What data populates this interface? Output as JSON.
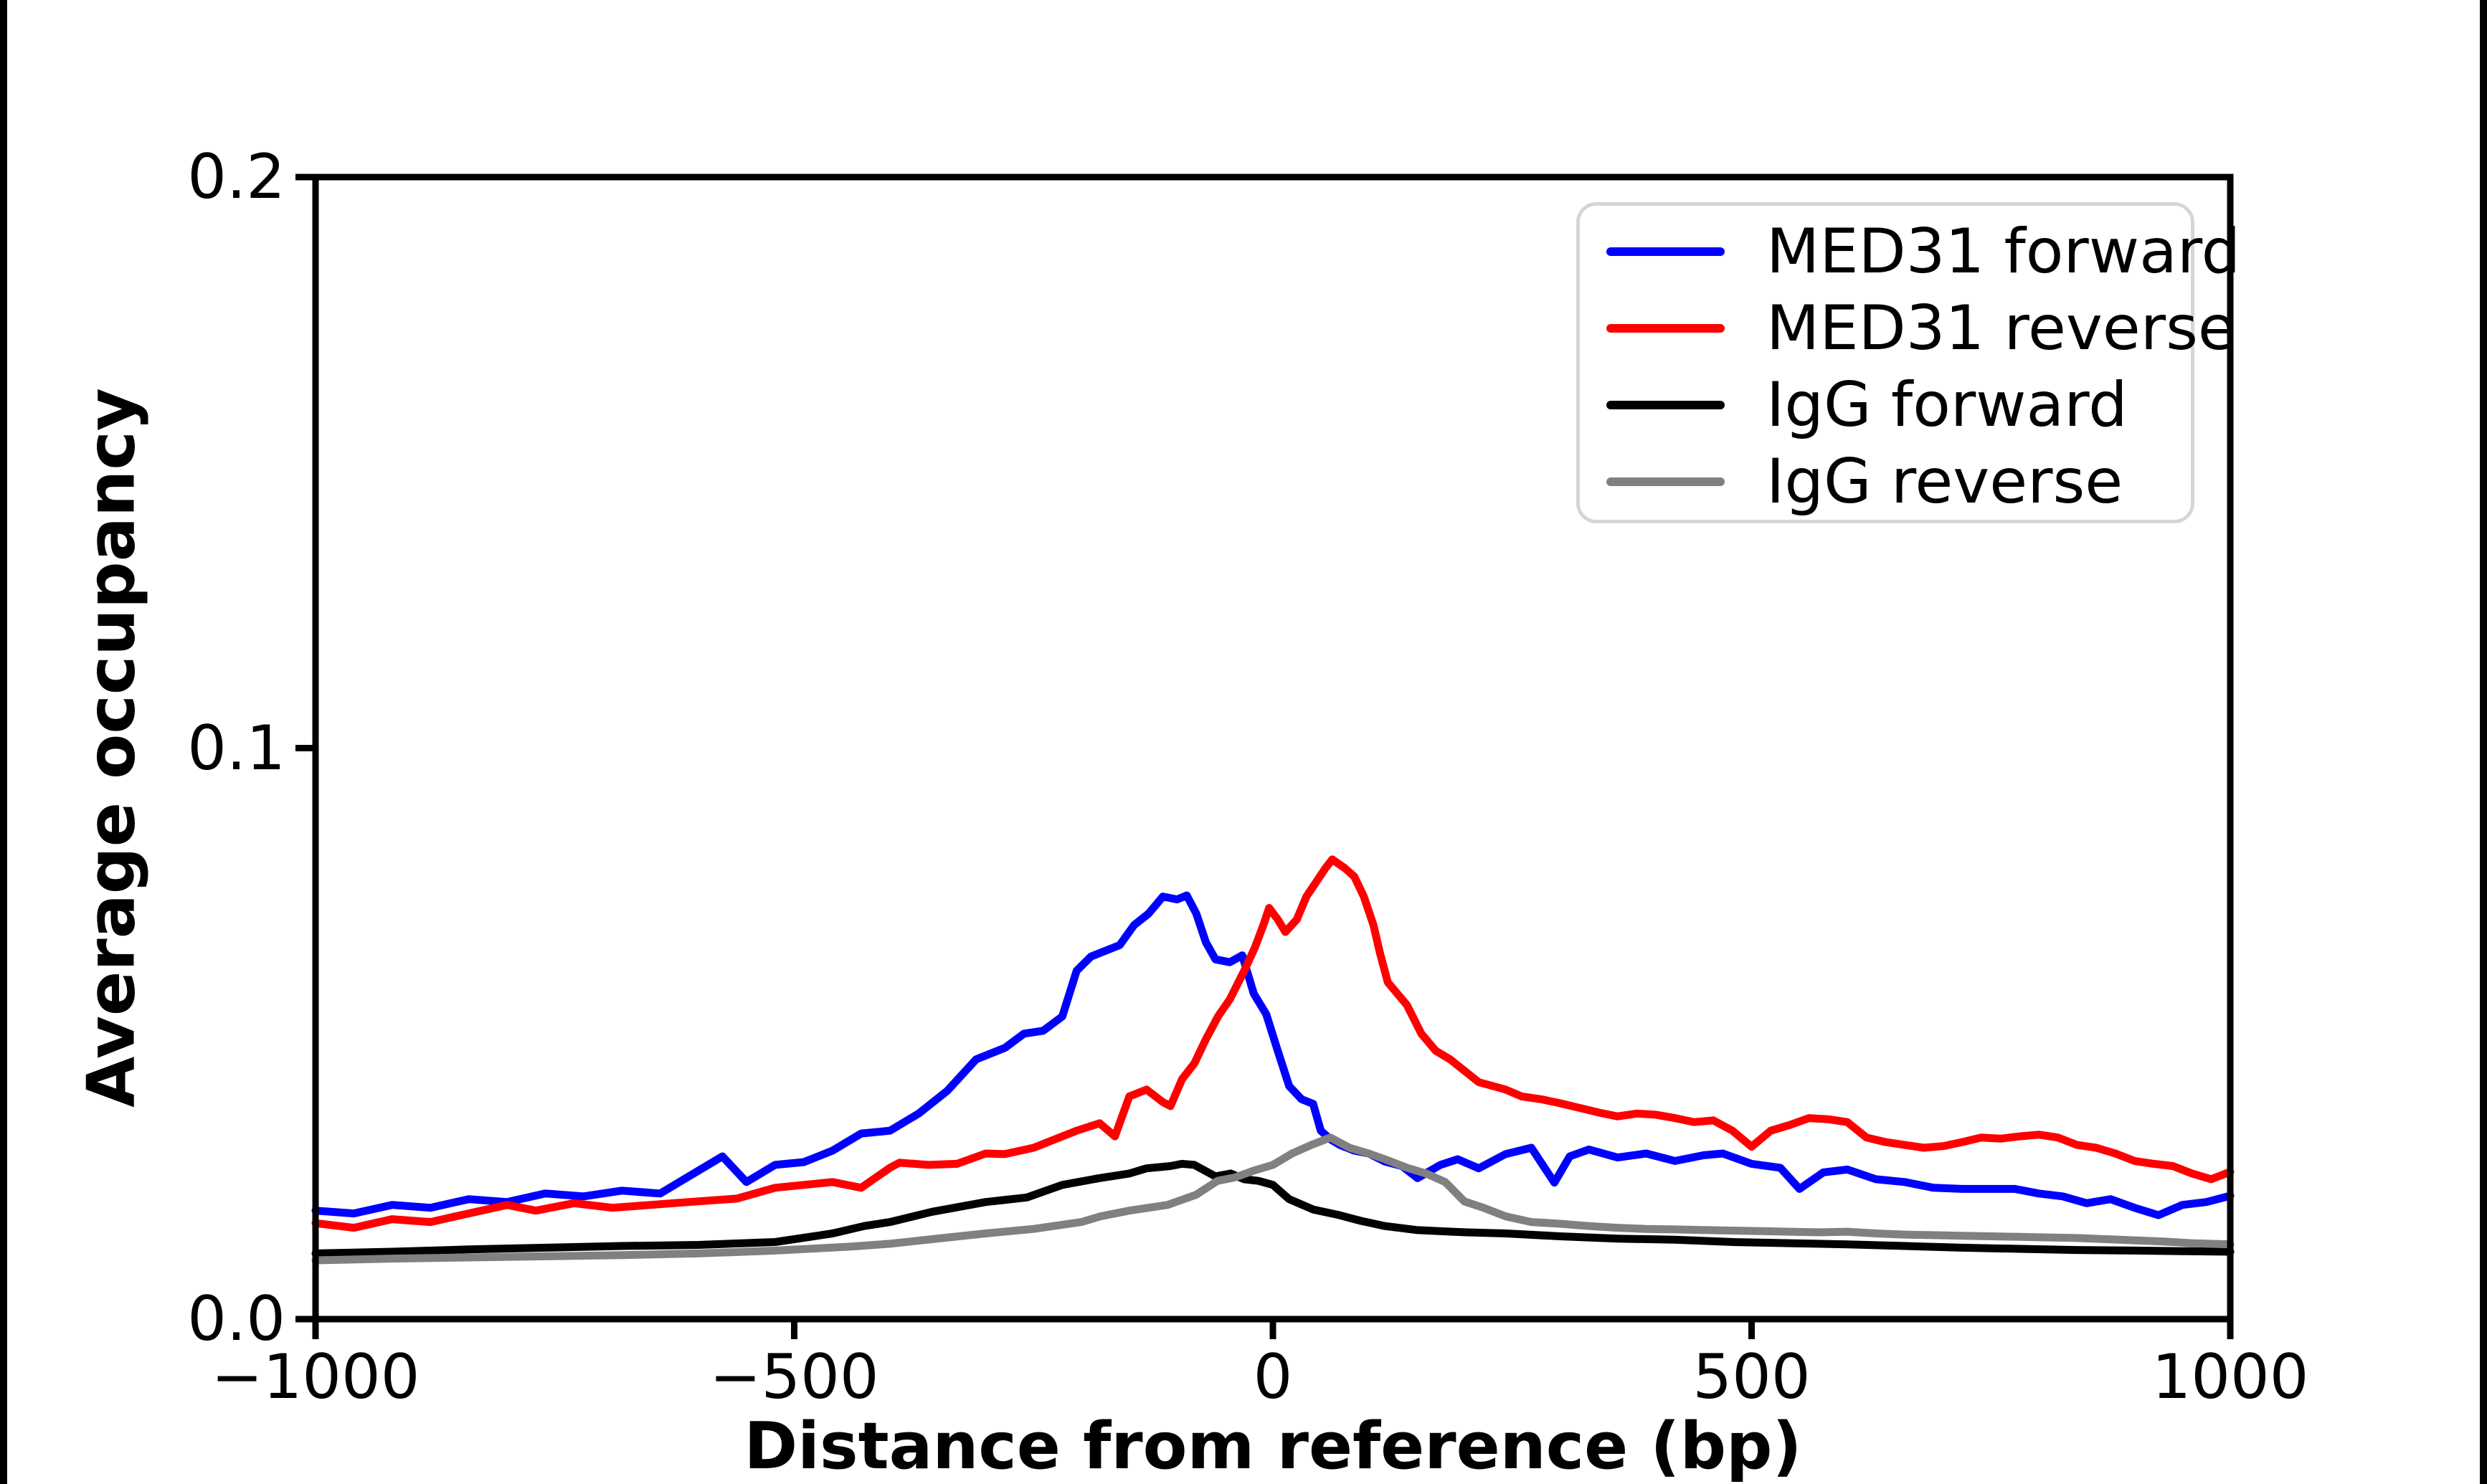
{
  "figure": {
    "background_color": "#ffffff",
    "edge_bar_color": "#000000",
    "spine_color": "#000000",
    "legend_border_color": "#d5d5d5"
  },
  "chart_data": {
    "type": "line",
    "title": "",
    "xlabel": "Distance from reference (bp)",
    "ylabel": "Average occupancy",
    "xlim": [
      -1000,
      1000
    ],
    "ylim": [
      0,
      0.2
    ],
    "grid": false,
    "legend_position": "upper right",
    "x_ticks": {
      "values": [
        -1000,
        -500,
        0,
        500,
        1000
      ],
      "labels": [
        "−1000",
        "−500",
        "0",
        "500",
        "1000"
      ]
    },
    "y_ticks": {
      "values": [
        0.0,
        0.1,
        0.2
      ],
      "labels": [
        "0.0",
        "0.1",
        "0.2"
      ]
    },
    "series": [
      {
        "name": "MED31 forward",
        "color": "#0000ff",
        "points": [
          [
            -1000,
            0.019
          ],
          [
            -960,
            0.0185
          ],
          [
            -920,
            0.02
          ],
          [
            -880,
            0.0195
          ],
          [
            -840,
            0.021
          ],
          [
            -800,
            0.0205
          ],
          [
            -760,
            0.022
          ],
          [
            -720,
            0.0215
          ],
          [
            -680,
            0.0225
          ],
          [
            -640,
            0.022
          ],
          [
            -600,
            0.026
          ],
          [
            -575,
            0.0285
          ],
          [
            -550,
            0.024
          ],
          [
            -520,
            0.027
          ],
          [
            -490,
            0.0275
          ],
          [
            -460,
            0.0295
          ],
          [
            -430,
            0.0325
          ],
          [
            -400,
            0.033
          ],
          [
            -370,
            0.036
          ],
          [
            -340,
            0.04
          ],
          [
            -310,
            0.0455
          ],
          [
            -280,
            0.0475
          ],
          [
            -260,
            0.05
          ],
          [
            -240,
            0.0505
          ],
          [
            -220,
            0.053
          ],
          [
            -205,
            0.061
          ],
          [
            -190,
            0.0635
          ],
          [
            -175,
            0.0645
          ],
          [
            -160,
            0.0655
          ],
          [
            -145,
            0.069
          ],
          [
            -130,
            0.071
          ],
          [
            -115,
            0.074
          ],
          [
            -100,
            0.0735
          ],
          [
            -90,
            0.0742
          ],
          [
            -80,
            0.071
          ],
          [
            -70,
            0.066
          ],
          [
            -60,
            0.063
          ],
          [
            -45,
            0.0625
          ],
          [
            -32,
            0.0637
          ],
          [
            -20,
            0.057
          ],
          [
            -7,
            0.0534
          ],
          [
            5,
            0.047
          ],
          [
            17,
            0.0408
          ],
          [
            30,
            0.0385
          ],
          [
            42,
            0.0377
          ],
          [
            50,
            0.033
          ],
          [
            60,
            0.0315
          ],
          [
            70,
            0.0305
          ],
          [
            85,
            0.0295
          ],
          [
            100,
            0.029
          ],
          [
            117,
            0.0276
          ],
          [
            135,
            0.0268
          ],
          [
            151,
            0.0247
          ],
          [
            175,
            0.027
          ],
          [
            193,
            0.028
          ],
          [
            215,
            0.0264
          ],
          [
            243,
            0.0289
          ],
          [
            270,
            0.03
          ],
          [
            294,
            0.0239
          ],
          [
            310,
            0.0285
          ],
          [
            330,
            0.0297
          ],
          [
            360,
            0.0283
          ],
          [
            390,
            0.029
          ],
          [
            420,
            0.0277
          ],
          [
            450,
            0.0287
          ],
          [
            470,
            0.029
          ],
          [
            500,
            0.0272
          ],
          [
            530,
            0.0265
          ],
          [
            550,
            0.0228
          ],
          [
            575,
            0.0257
          ],
          [
            600,
            0.0262
          ],
          [
            630,
            0.0245
          ],
          [
            660,
            0.024
          ],
          [
            690,
            0.023
          ],
          [
            720,
            0.0228
          ],
          [
            750,
            0.0228
          ],
          [
            775,
            0.0228
          ],
          [
            800,
            0.022
          ],
          [
            825,
            0.0215
          ],
          [
            850,
            0.0203
          ],
          [
            875,
            0.021
          ],
          [
            900,
            0.0195
          ],
          [
            925,
            0.0182
          ],
          [
            950,
            0.02
          ],
          [
            975,
            0.0205
          ],
          [
            1000,
            0.0216
          ]
        ]
      },
      {
        "name": "MED31 reverse",
        "color": "#ff0000",
        "points": [
          [
            -1000,
            0.0168
          ],
          [
            -960,
            0.016
          ],
          [
            -920,
            0.0175
          ],
          [
            -880,
            0.017
          ],
          [
            -840,
            0.0185
          ],
          [
            -800,
            0.02
          ],
          [
            -770,
            0.019
          ],
          [
            -730,
            0.0203
          ],
          [
            -690,
            0.0195
          ],
          [
            -650,
            0.02
          ],
          [
            -610,
            0.0205
          ],
          [
            -560,
            0.0211
          ],
          [
            -520,
            0.023
          ],
          [
            -490,
            0.0235
          ],
          [
            -460,
            0.024
          ],
          [
            -430,
            0.023
          ],
          [
            -400,
            0.0265
          ],
          [
            -390,
            0.0274
          ],
          [
            -360,
            0.027
          ],
          [
            -330,
            0.0272
          ],
          [
            -300,
            0.029
          ],
          [
            -280,
            0.0289
          ],
          [
            -250,
            0.03
          ],
          [
            -220,
            0.032
          ],
          [
            -205,
            0.033
          ],
          [
            -181,
            0.0343
          ],
          [
            -165,
            0.032
          ],
          [
            -150,
            0.039
          ],
          [
            -132,
            0.0402
          ],
          [
            -115,
            0.038
          ],
          [
            -107,
            0.0373
          ],
          [
            -95,
            0.042
          ],
          [
            -82,
            0.0448
          ],
          [
            -70,
            0.049
          ],
          [
            -57,
            0.0531
          ],
          [
            -45,
            0.056
          ],
          [
            -30,
            0.061
          ],
          [
            -19,
            0.065
          ],
          [
            -10,
            0.069
          ],
          [
            -4,
            0.072
          ],
          [
            5,
            0.07
          ],
          [
            13,
            0.0678
          ],
          [
            25,
            0.07
          ],
          [
            35,
            0.074
          ],
          [
            45,
            0.0765
          ],
          [
            55,
            0.079
          ],
          [
            62,
            0.0805
          ],
          [
            75,
            0.079
          ],
          [
            85,
            0.0775
          ],
          [
            95,
            0.074
          ],
          [
            105,
            0.069
          ],
          [
            112,
            0.064
          ],
          [
            120,
            0.059
          ],
          [
            130,
            0.057
          ],
          [
            140,
            0.055
          ],
          [
            155,
            0.05
          ],
          [
            170,
            0.047
          ],
          [
            185,
            0.0455
          ],
          [
            200,
            0.0435
          ],
          [
            215,
            0.0415
          ],
          [
            230,
            0.0408
          ],
          [
            243,
            0.0402
          ],
          [
            260,
            0.039
          ],
          [
            280,
            0.0385
          ],
          [
            300,
            0.0378
          ],
          [
            320,
            0.037
          ],
          [
            340,
            0.0362
          ],
          [
            360,
            0.0355
          ],
          [
            380,
            0.036
          ],
          [
            400,
            0.0358
          ],
          [
            420,
            0.0352
          ],
          [
            440,
            0.0345
          ],
          [
            460,
            0.0348
          ],
          [
            480,
            0.033
          ],
          [
            500,
            0.0302
          ],
          [
            520,
            0.033
          ],
          [
            540,
            0.034
          ],
          [
            560,
            0.0352
          ],
          [
            580,
            0.035
          ],
          [
            600,
            0.0345
          ],
          [
            620,
            0.0318
          ],
          [
            640,
            0.031
          ],
          [
            660,
            0.0305
          ],
          [
            680,
            0.03
          ],
          [
            700,
            0.0303
          ],
          [
            720,
            0.031
          ],
          [
            740,
            0.0318
          ],
          [
            760,
            0.0316
          ],
          [
            780,
            0.032
          ],
          [
            800,
            0.0323
          ],
          [
            820,
            0.0318
          ],
          [
            840,
            0.0305
          ],
          [
            860,
            0.03
          ],
          [
            880,
            0.029
          ],
          [
            900,
            0.0277
          ],
          [
            920,
            0.0272
          ],
          [
            940,
            0.0268
          ],
          [
            960,
            0.0255
          ],
          [
            980,
            0.0245
          ],
          [
            1000,
            0.0258
          ]
        ]
      },
      {
        "name": "IgG forward",
        "color": "#000000",
        "points": [
          [
            -1000,
            0.0115
          ],
          [
            -920,
            0.0118
          ],
          [
            -840,
            0.0122
          ],
          [
            -760,
            0.0125
          ],
          [
            -680,
            0.0128
          ],
          [
            -600,
            0.013
          ],
          [
            -520,
            0.0135
          ],
          [
            -460,
            0.015
          ],
          [
            -427,
            0.0163
          ],
          [
            -400,
            0.017
          ],
          [
            -356,
            0.0188
          ],
          [
            -300,
            0.0205
          ],
          [
            -257,
            0.0213
          ],
          [
            -220,
            0.0235
          ],
          [
            -181,
            0.0247
          ],
          [
            -150,
            0.0255
          ],
          [
            -132,
            0.0264
          ],
          [
            -107,
            0.0268
          ],
          [
            -95,
            0.0272
          ],
          [
            -82,
            0.027
          ],
          [
            -60,
            0.025
          ],
          [
            -44,
            0.0255
          ],
          [
            -30,
            0.0245
          ],
          [
            -15,
            0.0242
          ],
          [
            0,
            0.0235
          ],
          [
            17,
            0.021
          ],
          [
            42,
            0.0192
          ],
          [
            67,
            0.0183
          ],
          [
            92,
            0.0172
          ],
          [
            117,
            0.0163
          ],
          [
            150,
            0.0156
          ],
          [
            200,
            0.0152
          ],
          [
            243,
            0.015
          ],
          [
            300,
            0.0145
          ],
          [
            360,
            0.0141
          ],
          [
            420,
            0.0139
          ],
          [
            480,
            0.0135
          ],
          [
            540,
            0.0133
          ],
          [
            600,
            0.0131
          ],
          [
            660,
            0.0128
          ],
          [
            720,
            0.0125
          ],
          [
            780,
            0.0123
          ],
          [
            840,
            0.0121
          ],
          [
            900,
            0.012
          ],
          [
            950,
            0.0119
          ],
          [
            1000,
            0.0118
          ]
        ]
      },
      {
        "name": "IgG reverse",
        "color": "#808080",
        "points": [
          [
            -1000,
            0.0103
          ],
          [
            -920,
            0.0106
          ],
          [
            -840,
            0.0108
          ],
          [
            -760,
            0.011
          ],
          [
            -680,
            0.0112
          ],
          [
            -600,
            0.0115
          ],
          [
            -520,
            0.012
          ],
          [
            -440,
            0.0127
          ],
          [
            -400,
            0.0132
          ],
          [
            -356,
            0.014
          ],
          [
            -300,
            0.015
          ],
          [
            -250,
            0.0158
          ],
          [
            -200,
            0.017
          ],
          [
            -180,
            0.018
          ],
          [
            -150,
            0.019
          ],
          [
            -110,
            0.02
          ],
          [
            -80,
            0.0218
          ],
          [
            -58,
            0.0242
          ],
          [
            -40,
            0.0248
          ],
          [
            -20,
            0.026
          ],
          [
            0,
            0.027
          ],
          [
            20,
            0.029
          ],
          [
            40,
            0.0305
          ],
          [
            60,
            0.0318
          ],
          [
            80,
            0.03
          ],
          [
            100,
            0.029
          ],
          [
            117,
            0.028
          ],
          [
            140,
            0.0265
          ],
          [
            160,
            0.0255
          ],
          [
            180,
            0.024
          ],
          [
            200,
            0.0206
          ],
          [
            220,
            0.0195
          ],
          [
            243,
            0.018
          ],
          [
            270,
            0.017
          ],
          [
            300,
            0.0167
          ],
          [
            330,
            0.0163
          ],
          [
            360,
            0.016
          ],
          [
            390,
            0.0158
          ],
          [
            420,
            0.0157
          ],
          [
            450,
            0.0156
          ],
          [
            480,
            0.0155
          ],
          [
            510,
            0.0154
          ],
          [
            540,
            0.0153
          ],
          [
            570,
            0.0152
          ],
          [
            600,
            0.0153
          ],
          [
            630,
            0.015
          ],
          [
            660,
            0.0148
          ],
          [
            690,
            0.0147
          ],
          [
            720,
            0.0146
          ],
          [
            750,
            0.0145
          ],
          [
            780,
            0.0144
          ],
          [
            810,
            0.0143
          ],
          [
            840,
            0.0142
          ],
          [
            870,
            0.014
          ],
          [
            900,
            0.0138
          ],
          [
            930,
            0.0136
          ],
          [
            960,
            0.0133
          ],
          [
            1000,
            0.0131
          ]
        ]
      }
    ]
  }
}
